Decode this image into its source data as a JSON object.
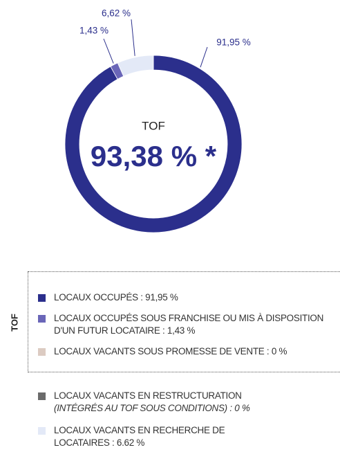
{
  "chart_data": {
    "type": "donut",
    "center_title": "TOF",
    "center_value": "93,38 % *",
    "categories": [
      "LOCAUX OCCUPÉS : 91,95 %",
      "LOCAUX OCCUPÉS SOUS FRANCHISE OU MIS À DISPOSITION D'UN FUTUR LOCATAIRE : 1,43 %",
      "LOCAUX VACANTS SOUS PROMESSE DE VENTE : 0 %",
      "LOCAUX VACANTS EN RESTRUCTURATION",
      "LOCAUX VACANTS EN RECHERCHE DE LOCATAIRES : 6.62 %"
    ],
    "category_notes": [
      null,
      null,
      null,
      "(INTÉGRÉS AU TOF SOUS CONDITIONS) : 0 %",
      null
    ],
    "values": [
      91.95,
      1.43,
      0,
      0,
      6.62
    ],
    "value_labels": [
      "91,95 %",
      "1,43 %",
      null,
      null,
      "6,62 %"
    ],
    "colors": [
      "#2b2f8c",
      "#6a66b8",
      "#dccbc2",
      "#6b6b6b",
      "#e3e9f7"
    ],
    "legend_group_label": "TOF",
    "legend_group_size": 3
  }
}
